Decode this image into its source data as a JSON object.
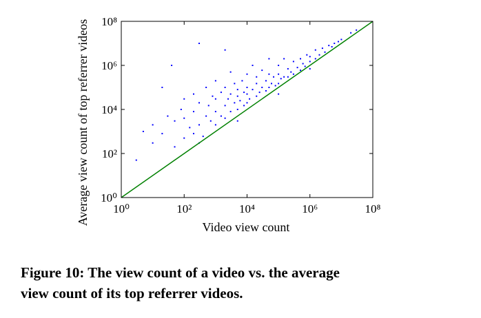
{
  "chart_data": {
    "type": "scatter",
    "x_label": "Video view count",
    "y_label": "Average view count of top referrer videos",
    "caption_lines": [
      "Figure 10: The view count of a video vs. the average",
      "view count of its top referrer videos."
    ],
    "xscale": "log",
    "yscale": "log",
    "xlim": [
      1,
      100000000
    ],
    "ylim": [
      1,
      100000000
    ],
    "xticks": [
      {
        "value": 1,
        "label": "10⁰"
      },
      {
        "value": 100,
        "label": "10²"
      },
      {
        "value": 10000,
        "label": "10⁴"
      },
      {
        "value": 1000000,
        "label": "10⁶"
      },
      {
        "value": 100000000,
        "label": "10⁸"
      }
    ],
    "yticks": [
      {
        "value": 1,
        "label": "10⁰"
      },
      {
        "value": 100,
        "label": "10²"
      },
      {
        "value": 10000,
        "label": "10⁴"
      },
      {
        "value": 1000000,
        "label": "10⁶"
      },
      {
        "value": 100000000,
        "label": "10⁸"
      }
    ],
    "points": {
      "color": "#0000ff",
      "x": [
        10,
        10,
        20,
        30,
        50,
        50,
        80,
        100,
        100,
        100,
        150,
        200,
        200,
        200,
        300,
        300,
        400,
        500,
        500,
        600,
        700,
        800,
        1000,
        1000,
        1000,
        1000,
        1500,
        1500,
        2000,
        2000,
        2000,
        2500,
        3000,
        3000,
        3000,
        4000,
        4000,
        5000,
        5000,
        5000,
        6000,
        7000,
        8000,
        8000,
        10000,
        10000,
        10000,
        10000,
        12000,
        15000,
        15000,
        20000,
        20000,
        20000,
        25000,
        30000,
        30000,
        40000,
        40000,
        50000,
        50000,
        50000,
        60000,
        70000,
        80000,
        100000,
        100000,
        100000,
        120000,
        150000,
        150000,
        200000,
        200000,
        250000,
        300000,
        300000,
        400000,
        500000,
        500000,
        600000,
        700000,
        800000,
        1000000,
        1000000,
        1500000,
        1500000,
        2000000,
        2500000,
        3000000,
        4000000,
        5000000,
        6000000,
        8000000,
        10000000,
        20000000,
        30000000,
        3,
        5,
        20,
        40,
        300,
        2000,
        100000,
        1000000,
        300,
        5000
      ],
      "y": [
        300,
        2000,
        800,
        5000,
        200,
        3000,
        10000,
        500,
        4000,
        30000,
        1500,
        800,
        8000,
        50000,
        2000,
        20000,
        600,
        5000,
        100000,
        15000,
        3000,
        40000,
        2000,
        8000,
        30000,
        200000,
        5000,
        60000,
        4000,
        15000,
        100000,
        30000,
        8000,
        50000,
        500000,
        20000,
        150000,
        10000,
        40000,
        80000,
        25000,
        200000,
        15000,
        60000,
        20000,
        50000,
        100000,
        400000,
        30000,
        80000,
        1000000,
        40000,
        150000,
        300000,
        60000,
        100000,
        600000,
        70000,
        200000,
        100000,
        400000,
        2000000,
        150000,
        300000,
        120000,
        150000,
        400000,
        1000000,
        250000,
        300000,
        2000000,
        300000,
        700000,
        500000,
        400000,
        1500000,
        800000,
        600000,
        2000000,
        1200000,
        900000,
        3000000,
        1500000,
        2500000,
        2000000,
        5000000,
        3000000,
        6000000,
        4000000,
        8000000,
        7000000,
        10000000,
        12000000,
        15000000,
        30000000,
        40000000,
        50,
        1000,
        100000,
        1000000,
        10000000,
        5000000,
        50000,
        700000,
        300,
        3000
      ]
    },
    "reference_line": {
      "color": "#008000",
      "x": [
        1,
        100000000
      ],
      "y": [
        1,
        100000000
      ]
    }
  }
}
